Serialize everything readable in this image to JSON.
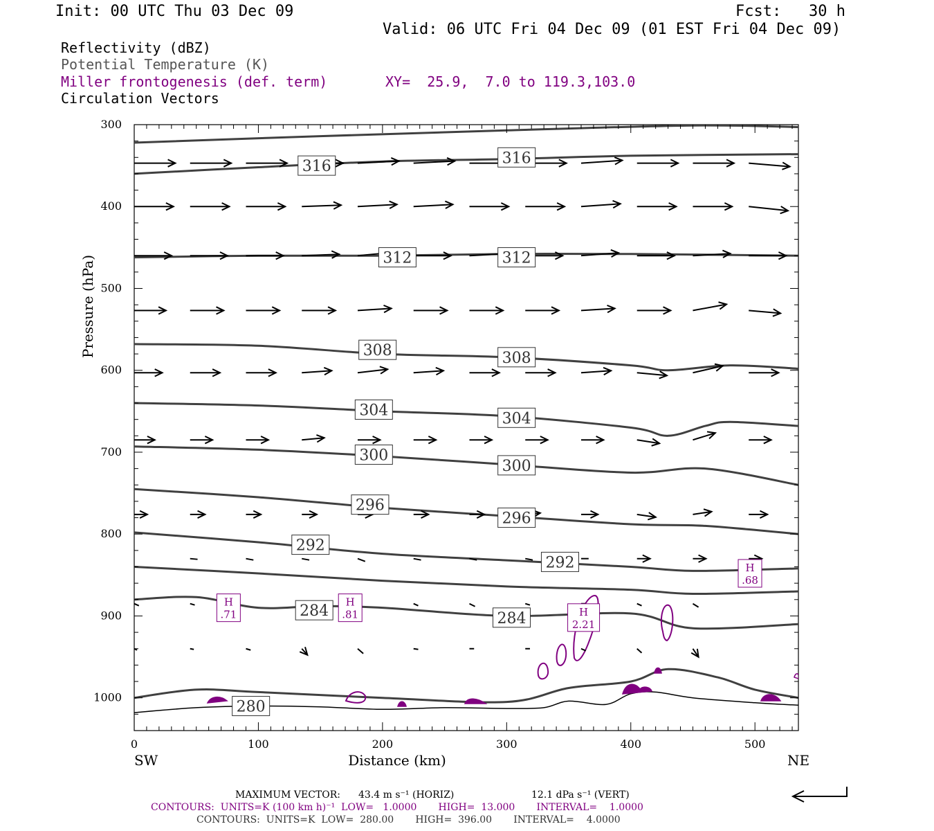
{
  "header": {
    "init": "Init: 00 UTC Thu 03 Dec 09",
    "fcst": "Fcst:   30 h",
    "valid": "Valid: 06 UTC Fri 04 Dec 09 (01 EST Fri 04 Dec 09)",
    "fields": [
      {
        "text": "Reflectivity (dBZ)",
        "color": "#000000"
      },
      {
        "text": "Potential Temperature (K)",
        "color": "#555555"
      },
      {
        "text": "Miller frontogenesis (def. term)",
        "color": "#800080"
      },
      {
        "text": "Circulation Vectors",
        "color": "#000000"
      }
    ],
    "xy": "XY=  25.9,  7.0 to 119.3,103.0"
  },
  "colors": {
    "theta": "#404040",
    "fronto": "#800080",
    "vector": "#000000",
    "terrain": "#000000"
  },
  "chart_data": {
    "type": "line",
    "title": "",
    "xlabel": "Distance (km)",
    "ylabel": "Pressure (hPa)",
    "xlim": [
      0,
      535
    ],
    "ylim": [
      1040,
      300
    ],
    "yscale": "linear-inverted",
    "x_ticks": [
      0,
      100,
      200,
      300,
      400,
      500
    ],
    "y_ticks": [
      300,
      400,
      500,
      600,
      700,
      800,
      900,
      1000
    ],
    "x_end_labels": {
      "left": "SW",
      "right": "NE"
    },
    "grid": false,
    "series": [
      {
        "name": "316",
        "x": [
          0,
          100,
          200,
          300,
          400,
          535
        ],
        "y": [
          360,
          352,
          345,
          342,
          338,
          336
        ]
      },
      {
        "name": "",
        "x": [
          0,
          150,
          300,
          450,
          535
        ],
        "y": [
          322,
          314,
          307,
          301,
          303
        ]
      },
      {
        "name": "312",
        "x": [
          0,
          100,
          200,
          300,
          400,
          535
        ],
        "y": [
          462,
          460,
          460,
          458,
          458,
          460
        ]
      },
      {
        "name": "308",
        "x": [
          0,
          100,
          200,
          300,
          400,
          430,
          480,
          535
        ],
        "y": [
          568,
          570,
          580,
          584,
          594,
          600,
          594,
          598
        ]
      },
      {
        "name": "304",
        "x": [
          0,
          100,
          200,
          300,
          400,
          430,
          460,
          480,
          535
        ],
        "y": [
          640,
          643,
          650,
          656,
          670,
          680,
          668,
          663,
          668
        ]
      },
      {
        "name": "300",
        "x": [
          0,
          100,
          200,
          300,
          400,
          460,
          535
        ],
        "y": [
          693,
          697,
          705,
          715,
          725,
          720,
          740
        ]
      },
      {
        "name": "296",
        "x": [
          0,
          100,
          200,
          300,
          400,
          460,
          535
        ],
        "y": [
          745,
          755,
          768,
          778,
          788,
          790,
          800
        ]
      },
      {
        "name": "292",
        "x": [
          0,
          100,
          200,
          300,
          400,
          450,
          535
        ],
        "y": [
          798,
          810,
          824,
          832,
          840,
          845,
          842
        ]
      },
      {
        "name": "",
        "x": [
          0,
          100,
          200,
          300,
          400,
          450,
          535
        ],
        "y": [
          840,
          848,
          857,
          864,
          868,
          873,
          870
        ]
      },
      {
        "name": "284",
        "x": [
          0,
          50,
          100,
          150,
          200,
          300,
          400,
          450,
          535
        ],
        "y": [
          880,
          877,
          890,
          888,
          890,
          900,
          897,
          915,
          910
        ]
      },
      {
        "name": "280",
        "x": [
          0,
          50,
          100,
          200,
          300,
          350,
          400,
          430,
          470,
          500,
          535
        ],
        "y": [
          1000,
          990,
          993,
          1000,
          1005,
          988,
          980,
          965,
          975,
          990,
          1000
        ]
      }
    ],
    "terrain": {
      "x": [
        0,
        50,
        100,
        150,
        200,
        250,
        300,
        330,
        350,
        380,
        400,
        420,
        450,
        500,
        535
      ],
      "y": [
        1018,
        1012,
        1010,
        1011,
        1014,
        1012,
        1013,
        1012,
        1004,
        1008,
        995,
        993,
        1000,
        1006,
        1009
      ]
    },
    "theta_labels": [
      {
        "text": "316",
        "x": 147,
        "y": 350
      },
      {
        "text": "316",
        "x": 308,
        "y": 340
      },
      {
        "text": "312",
        "x": 212,
        "y": 462
      },
      {
        "text": "312",
        "x": 308,
        "y": 462
      },
      {
        "text": "308",
        "x": 196,
        "y": 575
      },
      {
        "text": "308",
        "x": 308,
        "y": 584
      },
      {
        "text": "304",
        "x": 193,
        "y": 648
      },
      {
        "text": "304",
        "x": 308,
        "y": 658
      },
      {
        "text": "300",
        "x": 193,
        "y": 703
      },
      {
        "text": "300",
        "x": 308,
        "y": 716
      },
      {
        "text": "296",
        "x": 190,
        "y": 764
      },
      {
        "text": "296",
        "x": 308,
        "y": 780
      },
      {
        "text": "292",
        "x": 142,
        "y": 813
      },
      {
        "text": "292",
        "x": 343,
        "y": 834
      },
      {
        "text": "284",
        "x": 145,
        "y": 893
      },
      {
        "text": "284",
        "x": 304,
        "y": 902
      },
      {
        "text": "280",
        "x": 94,
        "y": 1010
      }
    ],
    "fronto_maxima": [
      {
        "h": "H",
        "v": ".71",
        "x": 76,
        "y": 890
      },
      {
        "h": "H",
        "v": ".81",
        "x": 174,
        "y": 890
      },
      {
        "h": "H",
        "v": "2.21",
        "x": 362,
        "y": 902
      },
      {
        "h": "H",
        "v": ".68",
        "x": 496,
        "y": 848
      }
    ],
    "vector_rows": [
      {
        "p": 347,
        "x": [
          0,
          45,
          90,
          135,
          180,
          225,
          270,
          315,
          360,
          405,
          450,
          495
        ],
        "u": [
          44,
          44,
          44,
          44,
          44,
          44,
          44,
          44,
          44,
          44,
          44,
          44
        ],
        "w": [
          0,
          0,
          0,
          0,
          3,
          3,
          0,
          0,
          4,
          0,
          0,
          -5
        ]
      },
      {
        "p": 400,
        "x": [
          0,
          45,
          90,
          135,
          180,
          225,
          270,
          315,
          360,
          405,
          450,
          495
        ],
        "u": [
          42,
          42,
          42,
          42,
          42,
          42,
          42,
          42,
          42,
          42,
          42,
          42
        ],
        "w": [
          0,
          0,
          0,
          2,
          3,
          3,
          0,
          0,
          4,
          0,
          0,
          -6
        ]
      },
      {
        "p": 460,
        "x": [
          0,
          45,
          90,
          135,
          180,
          225,
          270,
          315,
          360,
          405,
          450,
          495
        ],
        "u": [
          40,
          40,
          40,
          40,
          40,
          40,
          40,
          40,
          40,
          40,
          40,
          40
        ],
        "w": [
          0,
          0,
          0,
          2,
          5,
          0,
          3,
          0,
          4,
          0,
          3,
          0
        ]
      },
      {
        "p": 527,
        "x": [
          0,
          45,
          90,
          135,
          180,
          225,
          270,
          315,
          360,
          405,
          450,
          495
        ],
        "u": [
          34,
          36,
          36,
          36,
          36,
          36,
          36,
          36,
          36,
          36,
          36,
          34
        ],
        "w": [
          0,
          0,
          0,
          0,
          3,
          0,
          0,
          0,
          3,
          0,
          9,
          -4
        ]
      },
      {
        "p": 603,
        "x": [
          0,
          45,
          90,
          135,
          180,
          225,
          270,
          315,
          360,
          405,
          450,
          495
        ],
        "u": [
          30,
          32,
          32,
          32,
          32,
          32,
          32,
          32,
          32,
          32,
          32,
          32
        ],
        "w": [
          0,
          0,
          0,
          3,
          5,
          3,
          0,
          0,
          3,
          -4,
          10,
          0
        ]
      },
      {
        "p": 685,
        "x": [
          0,
          45,
          90,
          135,
          180,
          225,
          270,
          315,
          360,
          405,
          450,
          495
        ],
        "u": [
          22,
          24,
          24,
          24,
          24,
          24,
          24,
          24,
          24,
          24,
          24,
          24
        ],
        "w": [
          0,
          0,
          0,
          3,
          0,
          0,
          0,
          0,
          0,
          -5,
          10,
          0
        ]
      },
      {
        "p": 776,
        "x": [
          0,
          45,
          90,
          135,
          180,
          225,
          270,
          315,
          360,
          405,
          450,
          495
        ],
        "u": [
          14,
          16,
          16,
          16,
          16,
          16,
          16,
          16,
          18,
          20,
          20,
          20
        ],
        "w": [
          0,
          0,
          0,
          0,
          0,
          0,
          0,
          2,
          0,
          -4,
          4,
          0
        ]
      },
      {
        "p": 830,
        "x": [
          45,
          90,
          135,
          180,
          225,
          270,
          315,
          360,
          405,
          450,
          495
        ],
        "u": [
          8,
          8,
          8,
          8,
          8,
          8,
          8,
          8,
          14,
          14,
          14
        ],
        "w": [
          -1,
          -2,
          -2,
          -4,
          -2,
          -2,
          -2,
          0,
          0,
          0,
          0
        ]
      },
      {
        "p": 885,
        "x": [
          0,
          45,
          225,
          270,
          315,
          360,
          405,
          450
        ],
        "u": [
          5,
          5,
          5,
          6,
          5,
          5,
          5,
          6
        ],
        "w": [
          -3,
          -2,
          -3,
          -4,
          -2,
          0,
          -3,
          -5
        ]
      },
      {
        "p": 940,
        "x": [
          0,
          45,
          90,
          135,
          180,
          225,
          270,
          315,
          360,
          405,
          450
        ],
        "u": [
          3,
          4,
          5,
          6,
          6,
          5,
          5,
          5,
          5,
          5,
          6
        ],
        "w": [
          -2,
          -1,
          -2,
          -9,
          -7,
          -1,
          0,
          0,
          -3,
          -6,
          -12
        ]
      }
    ]
  },
  "footer": {
    "max_vector_label": "MAXIMUM VECTOR:",
    "max_vector_horiz": "43.4 m s⁻¹ (HORIZ)",
    "max_vector_vert": "12.1 dPa s⁻¹ (VERT)",
    "contours1": "CONTOURS:  UNITS=K (100 km h)⁻¹  LOW=   1.0000       HIGH=  13.000       INTERVAL=    1.0000",
    "contours2": "CONTOURS:  UNITS=K  LOW=  280.00       HIGH=  396.00       INTERVAL=    4.0000"
  }
}
